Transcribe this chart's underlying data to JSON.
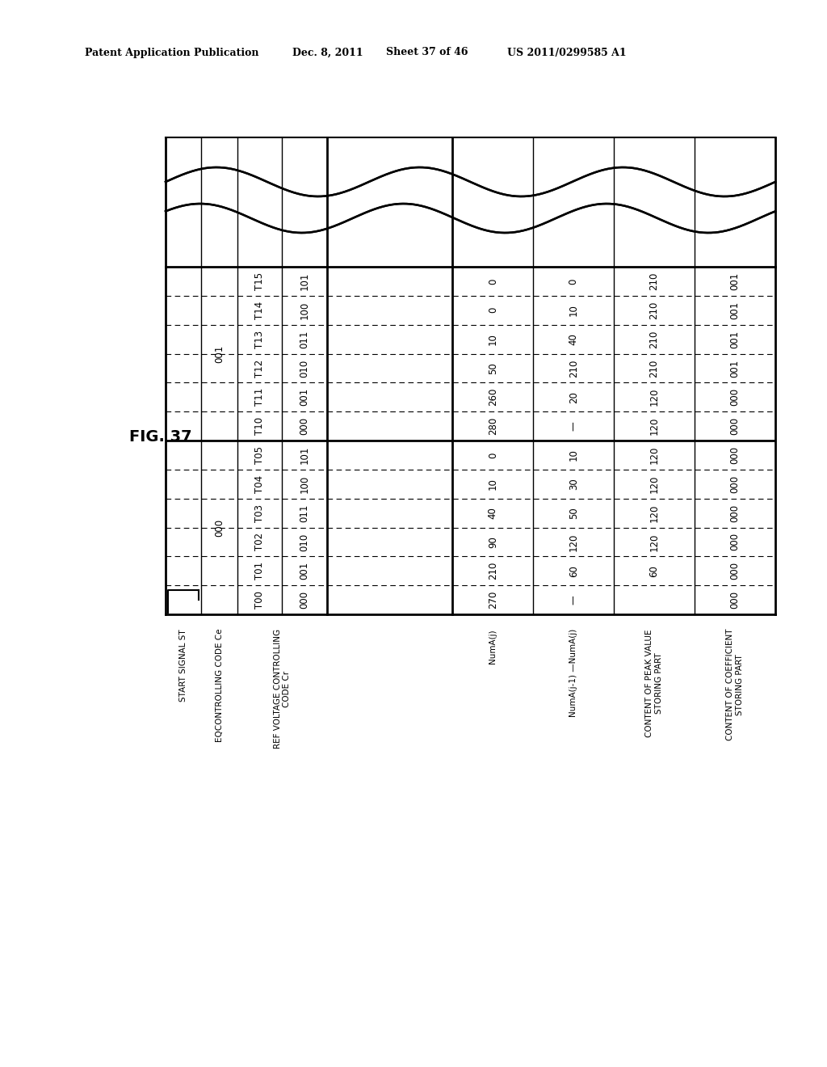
{
  "header": {
    "left": "Patent Application Publication",
    "date": "Dec. 8, 2011",
    "sheet": "Sheet 37 of 46",
    "patent": "US 2011/0299585 A1"
  },
  "fig_label": "FIG. 37",
  "rows": [
    {
      "t": "T15",
      "cr": "101",
      "eq": "001",
      "numA": "0",
      "diff": "0",
      "peak": "210",
      "coeff": "001"
    },
    {
      "t": "T14",
      "cr": "100",
      "eq": "001",
      "numA": "0",
      "diff": "10",
      "peak": "210",
      "coeff": "001"
    },
    {
      "t": "T13",
      "cr": "011",
      "eq": "001",
      "numA": "10",
      "diff": "40",
      "peak": "210",
      "coeff": "001"
    },
    {
      "t": "T12",
      "cr": "010",
      "eq": "001",
      "numA": "50",
      "diff": "210",
      "peak": "210",
      "coeff": "001"
    },
    {
      "t": "T11",
      "cr": "001",
      "eq": "001",
      "numA": "260",
      "diff": "20",
      "peak": "120",
      "coeff": "000"
    },
    {
      "t": "T10",
      "cr": "000",
      "eq": "001",
      "numA": "280",
      "diff": "—",
      "peak": "120",
      "coeff": "000"
    },
    {
      "t": "T05",
      "cr": "101",
      "eq": "000",
      "numA": "0",
      "diff": "10",
      "peak": "120",
      "coeff": "000"
    },
    {
      "t": "T04",
      "cr": "100",
      "eq": "000",
      "numA": "10",
      "diff": "30",
      "peak": "120",
      "coeff": "000"
    },
    {
      "t": "T03",
      "cr": "011",
      "eq": "000",
      "numA": "40",
      "diff": "50",
      "peak": "120",
      "coeff": "000"
    },
    {
      "t": "T02",
      "cr": "010",
      "eq": "000",
      "numA": "90",
      "diff": "120",
      "peak": "120",
      "coeff": "000"
    },
    {
      "t": "T01",
      "cr": "001",
      "eq": "000",
      "numA": "210",
      "diff": "60",
      "peak": "60",
      "coeff": "000"
    },
    {
      "t": "T00",
      "cr": "000",
      "eq": "000",
      "numA": "270",
      "diff": "—",
      "peak": "",
      "coeff": "000"
    }
  ],
  "col_labels": [
    "START SIGNAL ST",
    "EQCONTROLLING CODE Ce",
    "REF VOLTAGE CONTROLLING\nCODE Cr",
    "NumA(j)",
    "NumA(j-1) —NumA(j)",
    "CONTENT OF PEAK VALUE\nSTORING PART",
    "CONTENT OF COEFFICIENT\nSTORING PART"
  ]
}
